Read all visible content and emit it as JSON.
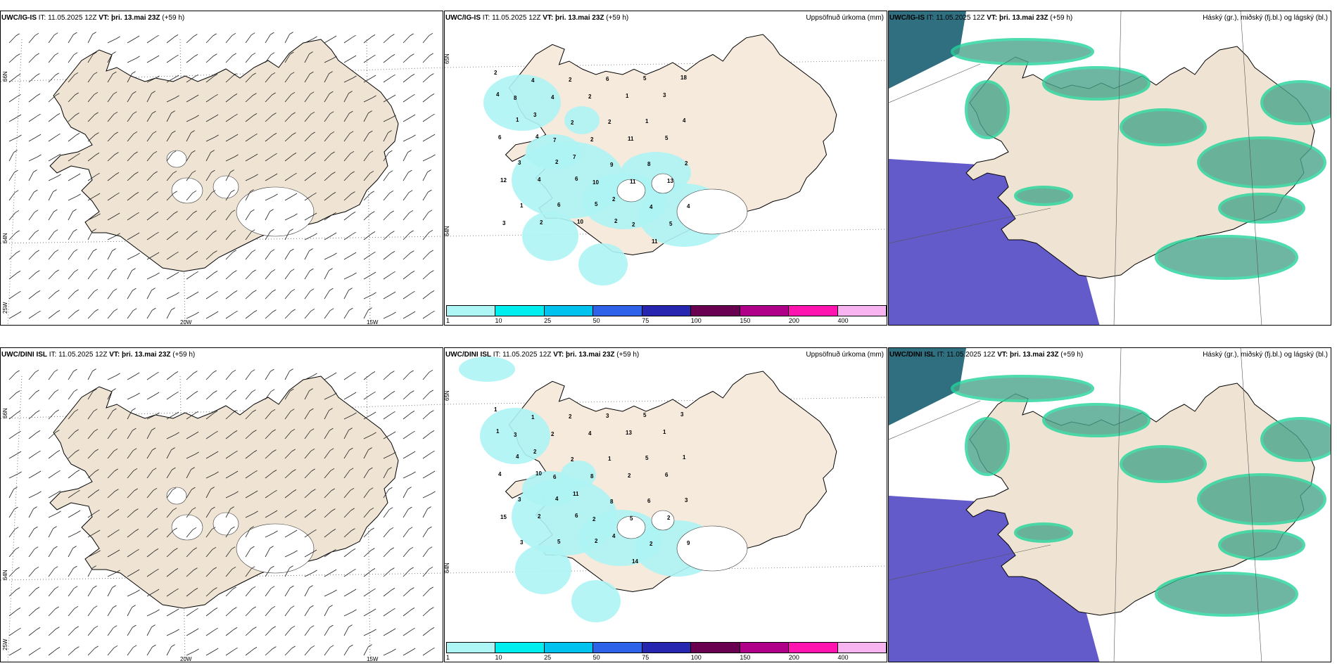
{
  "colors": {
    "land": "#efe4d4",
    "land_precip_panel": "#f6eadc",
    "precip_light": "#aef4f4",
    "cloud_high": "#5a52c6",
    "cloud_mid": "#4aa58c",
    "cloud_low_edge": "#22d39a",
    "coastline": "#000000"
  },
  "rows": [
    {
      "wind_panel": {
        "model": "UWC/IG-IS",
        "it_label": "IT:",
        "it_value": "11.05.2025 12Z",
        "vt_label": "VT:",
        "vt_value": "þri. 13.mai 23Z",
        "lead": "(+59 h)",
        "lon_labels": [
          "20W",
          "15W"
        ],
        "lat_labels": [
          "66N",
          "64N",
          "25W"
        ]
      },
      "precip_panel": {
        "model": "UWC/IG-IS",
        "it_label": "IT:",
        "it_value": "11.05.2025 12Z",
        "vt_label": "VT:",
        "vt_value": "þri. 13.mai 23Z",
        "lead": "(+59 h)",
        "title_right": "Uppsöfnuð úrkoma (mm)",
        "lat_labels": [
          "65N",
          "64N"
        ],
        "amounts": [
          "2",
          "4",
          "2",
          "6",
          "5",
          "18",
          "8",
          "4",
          "2",
          "1",
          "3",
          "4",
          "3",
          "2",
          "2",
          "1",
          "4",
          "1",
          "7",
          "2",
          "11",
          "5",
          "6",
          "4",
          "7",
          "9",
          "8",
          "2",
          "3",
          "2",
          "10",
          "11",
          "13",
          "12",
          "4",
          "6",
          "2",
          "4",
          "4",
          "1",
          "6",
          "5",
          "2",
          "5",
          "3",
          "2",
          "10",
          "2",
          "11"
        ]
      },
      "cloud_panel": {
        "model": "UWC/IG-IS",
        "it_label": "IT:",
        "it_value": "11.05.2025 12Z",
        "vt_label": "VT:",
        "vt_value": "þri. 13.mai 23Z",
        "lead": "(+59 h)",
        "title_right": "Háský (gr.), miðský (fj.bl.) og lágský (bl.)"
      }
    },
    {
      "wind_panel": {
        "model": "UWC/DINI ISL",
        "it_label": "IT:",
        "it_value": "11.05.2025 12Z",
        "vt_label": "VT:",
        "vt_value": "þri. 13.mai 23Z",
        "lead": "(+59 h)",
        "lon_labels": [
          "20W",
          "15W"
        ],
        "lat_labels": [
          "66N",
          "64N",
          "25W"
        ]
      },
      "precip_panel": {
        "model": "UWC/DINI ISL",
        "it_label": "IT:",
        "it_value": "11.05.2025 12Z",
        "vt_label": "VT:",
        "vt_value": "þri. 13.mai 23Z",
        "lead": "(+59 h)",
        "title_right": "Uppsöfnuð úrkoma (mm)",
        "lat_labels": [
          "65N",
          "64N"
        ],
        "amounts": [
          "1",
          "1",
          "2",
          "3",
          "5",
          "3",
          "3",
          "2",
          "4",
          "13",
          "1",
          "1",
          "2",
          "2",
          "1",
          "5",
          "1",
          "4",
          "6",
          "8",
          "2",
          "6",
          "4",
          "10",
          "11",
          "8",
          "6",
          "3",
          "3",
          "4",
          "2",
          "5",
          "2",
          "15",
          "2",
          "6",
          "4",
          "2",
          "9",
          "3",
          "5",
          "2",
          "14"
        ]
      },
      "cloud_panel": {
        "model": "UWC/DINI ISL",
        "it_label": "IT:",
        "it_value": "11.05.2025 12Z",
        "vt_label": "VT:",
        "vt_value": "þri. 13.mai 23Z",
        "lead": "(+59 h)",
        "title_right": "Háský (gr.), miðský (fj.bl.) og lágský (bl.)"
      }
    }
  ],
  "colorbar": {
    "ticks": [
      "1",
      "10",
      "25",
      "50",
      "75",
      "100",
      "150",
      "200",
      "400"
    ],
    "colors": [
      "#aef6f6",
      "#00eeee",
      "#00c2ee",
      "#2e62e8",
      "#2626b0",
      "#6a0050",
      "#b0008a",
      "#ff14b0",
      "#f7b4f0"
    ]
  }
}
